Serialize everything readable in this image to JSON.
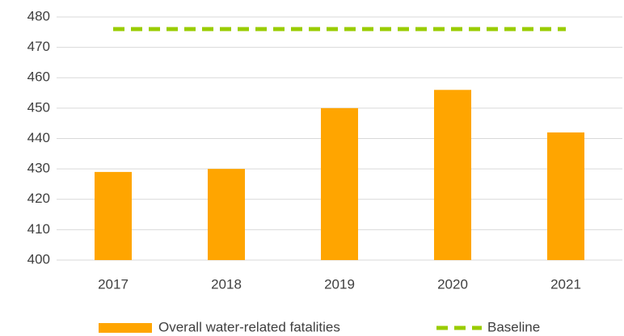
{
  "chart_data": {
    "type": "bar",
    "categories": [
      "2017",
      "2018",
      "2019",
      "2020",
      "2021"
    ],
    "series": [
      {
        "name": "Overall water-related fatalities",
        "type": "bar",
        "color": "#ffa500",
        "values": [
          429,
          430,
          450,
          456,
          442
        ]
      },
      {
        "name": "Baseline",
        "type": "line",
        "dashed": true,
        "color": "#99cc00",
        "values": [
          476,
          476,
          476,
          476,
          476
        ]
      }
    ],
    "ylim": [
      400,
      480
    ],
    "yticks": [
      400,
      410,
      420,
      430,
      440,
      450,
      460,
      470,
      480
    ],
    "grid": true,
    "legend": "bottom"
  }
}
